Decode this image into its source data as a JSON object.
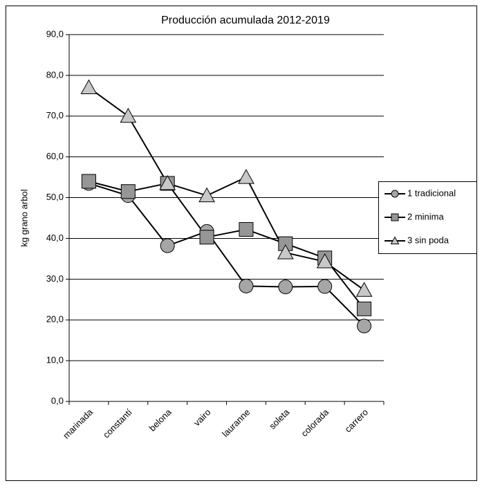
{
  "chart_data": {
    "type": "line",
    "title": "Producción acumulada 2012-2019",
    "y_label": "kg grano arbol",
    "categories": [
      "marinada",
      "constantí",
      "belona",
      "vairo",
      "lauranne",
      "soleta",
      "colorada",
      "carrero"
    ],
    "series": [
      {
        "name": "1 tradicional",
        "marker": "circle",
        "color": "#a6a6a6",
        "values": [
          53.5,
          50.5,
          38.2,
          41.7,
          28.3,
          28.1,
          28.2,
          18.5
        ]
      },
      {
        "name": "2 minima",
        "marker": "square",
        "color": "#969696",
        "values": [
          54.0,
          51.5,
          53.5,
          40.3,
          42.2,
          38.7,
          35.2,
          22.7
        ]
      },
      {
        "name": "3 sin poda",
        "marker": "triangle",
        "color": "#c8c8c8",
        "values": [
          77.0,
          70.0,
          53.5,
          50.5,
          55.0,
          36.5,
          34.3,
          27.3
        ]
      }
    ],
    "ylim": [
      0,
      90
    ],
    "yticks": [
      {
        "value": 0,
        "label": "0,0"
      },
      {
        "value": 10,
        "label": "10,0"
      },
      {
        "value": 20,
        "label": "20,0"
      },
      {
        "value": 30,
        "label": "30,0"
      },
      {
        "value": 40,
        "label": "40,0"
      },
      {
        "value": 50,
        "label": "50,0"
      },
      {
        "value": 60,
        "label": "60,0"
      },
      {
        "value": 70,
        "label": "70,0"
      },
      {
        "value": 80,
        "label": "80,0"
      },
      {
        "value": 90,
        "label": "90,0"
      }
    ],
    "grid": true,
    "legend": "right"
  }
}
